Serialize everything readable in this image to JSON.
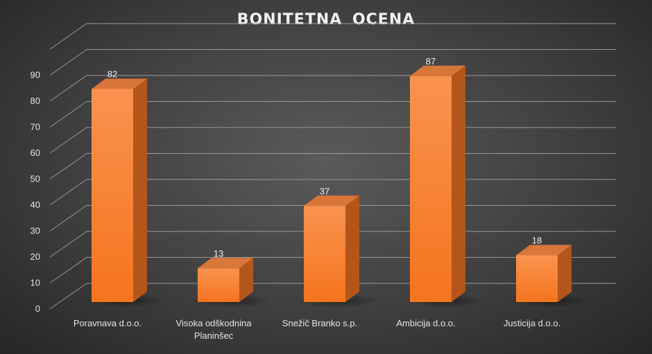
{
  "chart_data": {
    "type": "bar",
    "title": "BONITETNA  OCENA",
    "categories": [
      [
        "Poravnava d.o.o."
      ],
      [
        "Visoka odškodnina",
        "Planinšec"
      ],
      [
        "Snežič Branko s.p."
      ],
      [
        "Ambicija d.o.o."
      ],
      [
        "Justicija d.o.o."
      ]
    ],
    "values": [
      82,
      13,
      37,
      87,
      18
    ],
    "data_labels": [
      "82",
      "13",
      "37",
      "87",
      "18"
    ],
    "yticks": [
      "0",
      "10",
      "20",
      "30",
      "40",
      "50",
      "60",
      "70",
      "80",
      "90"
    ],
    "ylim": [
      0,
      100
    ],
    "grid": true,
    "legend": "none",
    "style": "3d-column",
    "colors": {
      "bar_front_top": "#f9934f",
      "bar_front_bottom": "#f5741e",
      "bar_side": "#b4561a",
      "bar_top": "#d9763a",
      "gridline": "#9a9a9a"
    }
  }
}
